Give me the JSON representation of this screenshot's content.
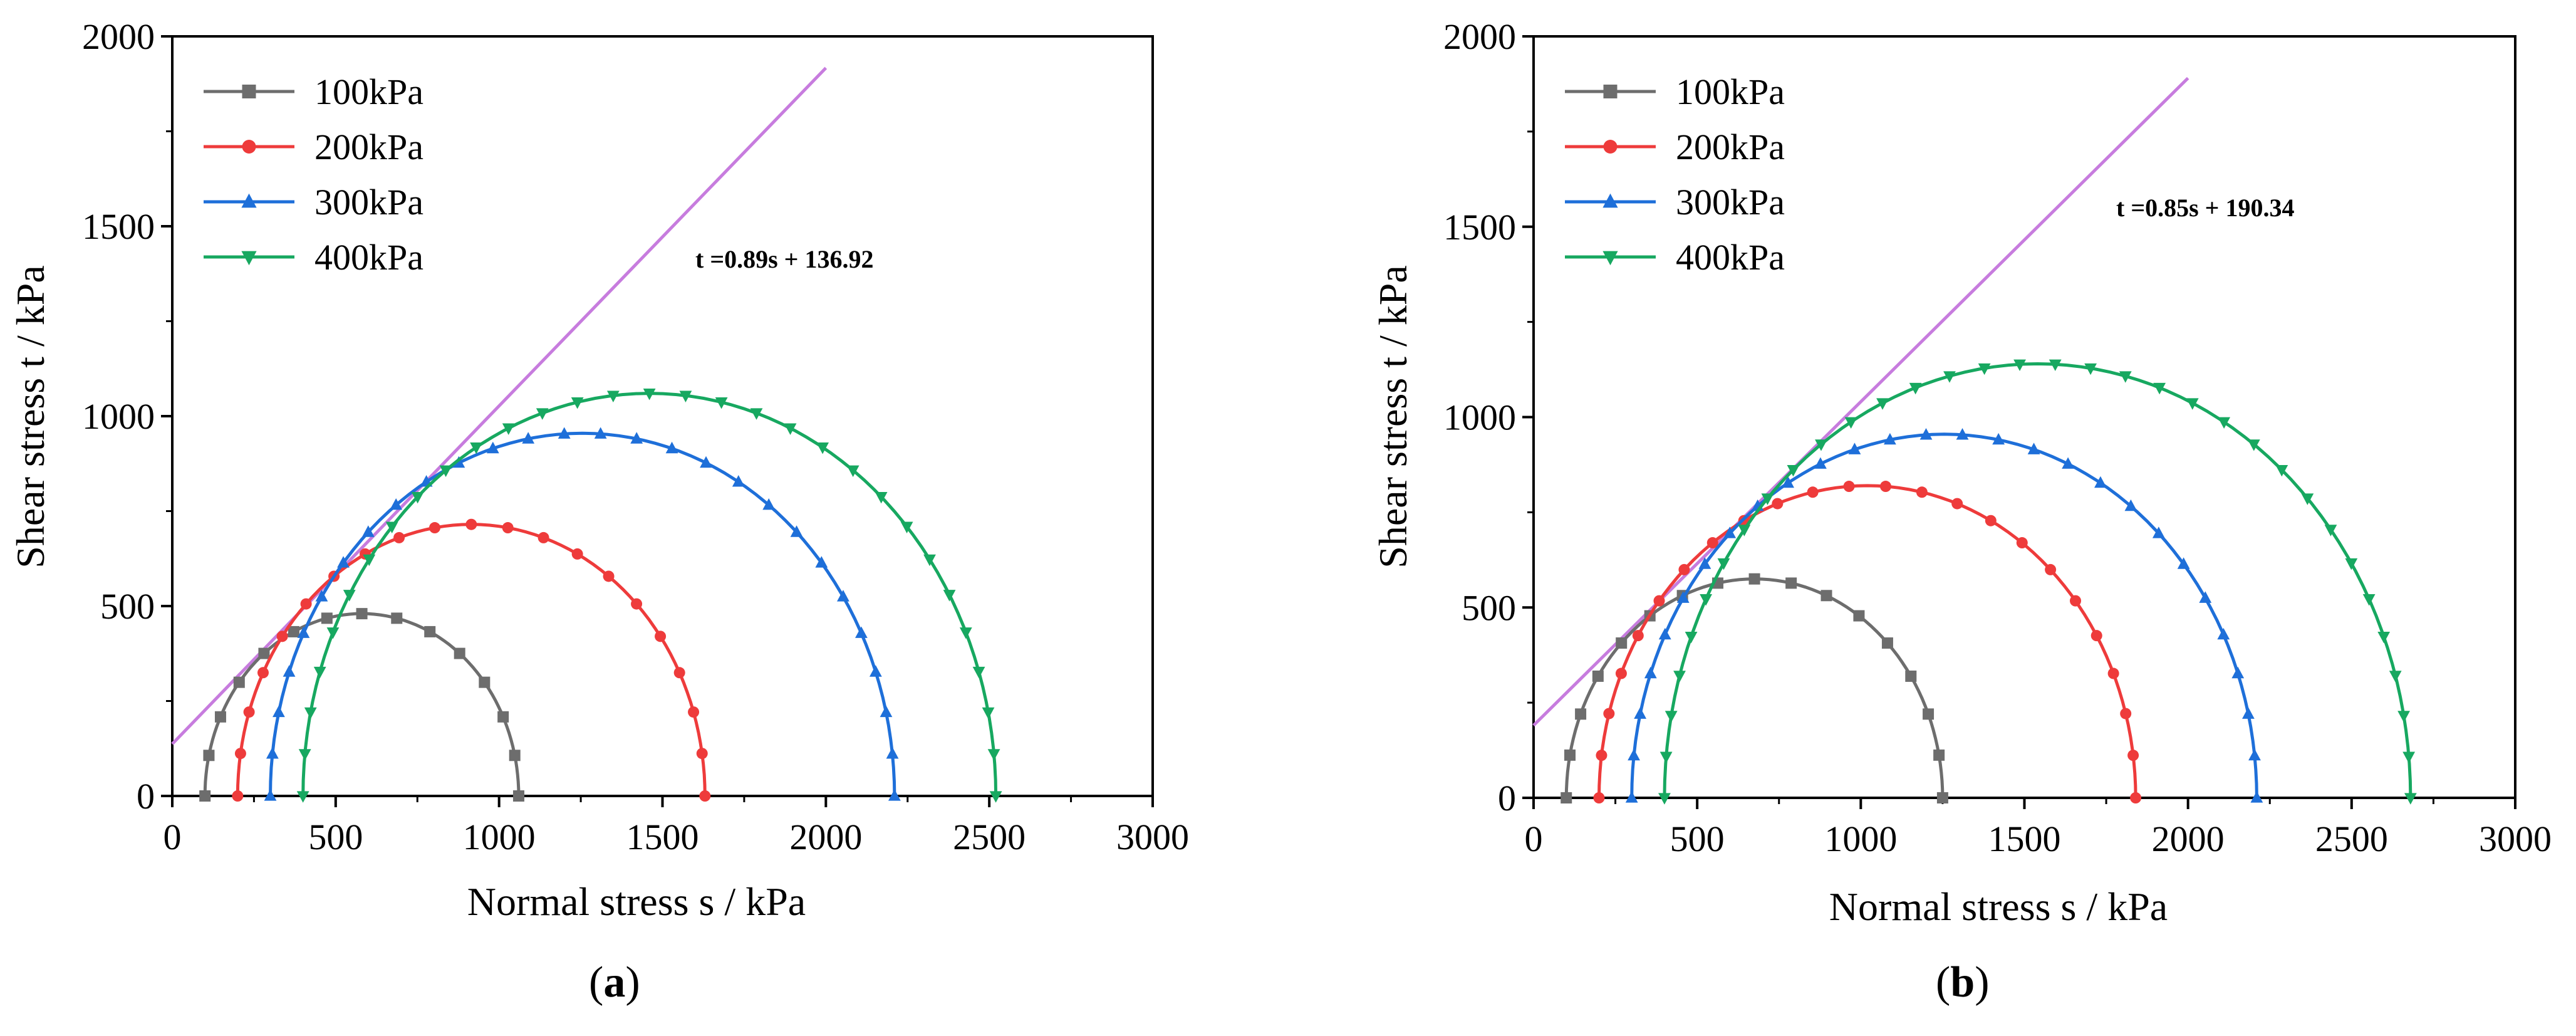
{
  "chart_data": [
    {
      "type": "line",
      "panel_label": "a",
      "xlabel": "Normal stress s  / kPa",
      "ylabel": "Shear stress t / kPa",
      "xlim": [
        0,
        3000
      ],
      "ylim": [
        0,
        2000
      ],
      "xticks": [
        0,
        500,
        1000,
        1500,
        2000,
        2500,
        3000
      ],
      "yticks": [
        0,
        500,
        1000,
        1500,
        2000
      ],
      "legend_position": "top-left",
      "series": [
        {
          "name": "100kPa",
          "color": "#6d6d6d",
          "marker": "square",
          "sigma3": 100,
          "sigma1": 1060
        },
        {
          "name": "200kPa",
          "color": "#ee3b3b",
          "marker": "circle",
          "sigma3": 200,
          "sigma1": 1630
        },
        {
          "name": "300kPa",
          "color": "#1e6fd9",
          "marker": "triangle-up",
          "sigma3": 300,
          "sigma1": 2210
        },
        {
          "name": "400kPa",
          "color": "#17a860",
          "marker": "triangle-down",
          "sigma3": 400,
          "sigma1": 2520
        }
      ],
      "envelope": {
        "slope": 0.89,
        "intercept": 136.92,
        "x_end": 2000,
        "color": "#c77cde",
        "label": "t =0.89s + 136.92"
      }
    },
    {
      "type": "line",
      "panel_label": "b",
      "xlabel": "Normal stress s  / kPa",
      "ylabel": "Shear stress t / kPa",
      "xlim": [
        0,
        3000
      ],
      "ylim": [
        0,
        2000
      ],
      "xticks": [
        0,
        500,
        1000,
        1500,
        2000,
        2500,
        3000
      ],
      "yticks": [
        0,
        500,
        1000,
        1500,
        2000
      ],
      "legend_position": "top-left",
      "series": [
        {
          "name": "100kPa",
          "color": "#6d6d6d",
          "marker": "square",
          "sigma3": 100,
          "sigma1": 1250
        },
        {
          "name": "200kPa",
          "color": "#ee3b3b",
          "marker": "circle",
          "sigma3": 200,
          "sigma1": 1840
        },
        {
          "name": "300kPa",
          "color": "#1e6fd9",
          "marker": "triangle-up",
          "sigma3": 300,
          "sigma1": 2210
        },
        {
          "name": "400kPa",
          "color": "#17a860",
          "marker": "triangle-down",
          "sigma3": 400,
          "sigma1": 2680
        }
      ],
      "envelope": {
        "slope": 0.85,
        "intercept": 190.34,
        "x_end": 2000,
        "color": "#c77cde",
        "label": "t =0.85s + 190.34"
      }
    }
  ]
}
